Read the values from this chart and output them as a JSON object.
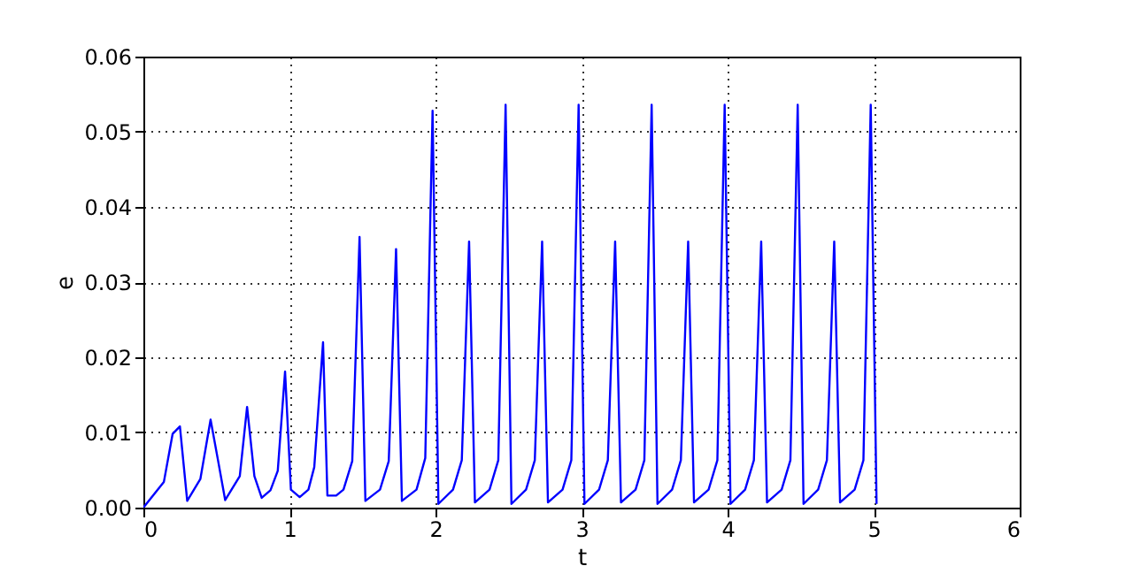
{
  "chart_data": {
    "type": "line",
    "xlabel": "t",
    "ylabel": "e",
    "x": [
      0,
      0.14,
      0.2,
      0.25,
      0.3,
      0.39,
      0.46,
      0.51,
      0.56,
      0.66,
      0.71,
      0.76,
      0.81,
      0.87,
      0.92,
      0.97,
      1.01,
      1.07,
      1.13,
      1.17,
      1.23,
      1.26,
      1.32,
      1.37,
      1.43,
      1.48,
      1.52,
      1.62,
      1.68,
      1.73,
      1.77,
      1.87,
      1.93,
      1.98,
      2.02,
      2.12,
      2.18,
      2.23,
      2.27,
      2.37,
      2.43,
      2.48,
      2.52,
      2.62,
      2.68,
      2.73,
      2.77,
      2.87,
      2.93,
      2.98,
      3.02,
      3.12,
      3.18,
      3.23,
      3.27,
      3.37,
      3.43,
      3.48,
      3.52,
      3.62,
      3.68,
      3.73,
      3.77,
      3.87,
      3.93,
      3.98,
      4.02,
      4.12,
      4.18,
      4.23,
      4.27,
      4.37,
      4.43,
      4.48,
      4.52,
      4.62,
      4.68,
      4.73,
      4.77,
      4.87,
      4.93,
      4.98,
      5.02
    ],
    "series": [
      {
        "color": "#0000ff",
        "values": [
          0,
          0.0034,
          0.0098,
          0.0108,
          0.0009,
          0.0038,
          0.0117,
          0.0064,
          0.001,
          0.0042,
          0.0134,
          0.0042,
          0.0013,
          0.0023,
          0.0049,
          0.0181,
          0.0024,
          0.0014,
          0.0024,
          0.0054,
          0.022,
          0.0016,
          0.0016,
          0.0024,
          0.0062,
          0.036,
          0.0009,
          0.0024,
          0.0062,
          0.0344,
          0.0009,
          0.0024,
          0.0066,
          0.0528,
          0.0005,
          0.0024,
          0.0063,
          0.0354,
          0.0007,
          0.0024,
          0.0063,
          0.0536,
          0.0005,
          0.0024,
          0.0063,
          0.0354,
          0.0007,
          0.0024,
          0.0063,
          0.0536,
          0.0005,
          0.0024,
          0.0063,
          0.0354,
          0.0007,
          0.0024,
          0.0063,
          0.0536,
          0.0005,
          0.0024,
          0.0063,
          0.0354,
          0.0007,
          0.0024,
          0.0063,
          0.0536,
          0.0005,
          0.0024,
          0.0063,
          0.0354,
          0.0007,
          0.0024,
          0.0063,
          0.0536,
          0.0005,
          0.0024,
          0.0063,
          0.0354,
          0.0007,
          0.0024,
          0.0063,
          0.0536,
          0.0005
        ]
      }
    ],
    "xlim": [
      0,
      6
    ],
    "xticks": [
      0,
      1,
      2,
      3,
      4,
      5,
      6
    ],
    "ylim": [
      0,
      0.06
    ],
    "yticks": [
      {
        "value": 0,
        "label": "0.00"
      },
      {
        "value": 0.01,
        "label": "0.01"
      },
      {
        "value": 0.02,
        "label": "0.02"
      },
      {
        "value": 0.03,
        "label": "0.03"
      },
      {
        "value": 0.04,
        "label": "0.04"
      },
      {
        "value": 0.05,
        "label": "0.05"
      },
      {
        "value": 0.06,
        "label": "0.06"
      }
    ],
    "grid": true,
    "line_style": "solid",
    "marker": "none"
  }
}
